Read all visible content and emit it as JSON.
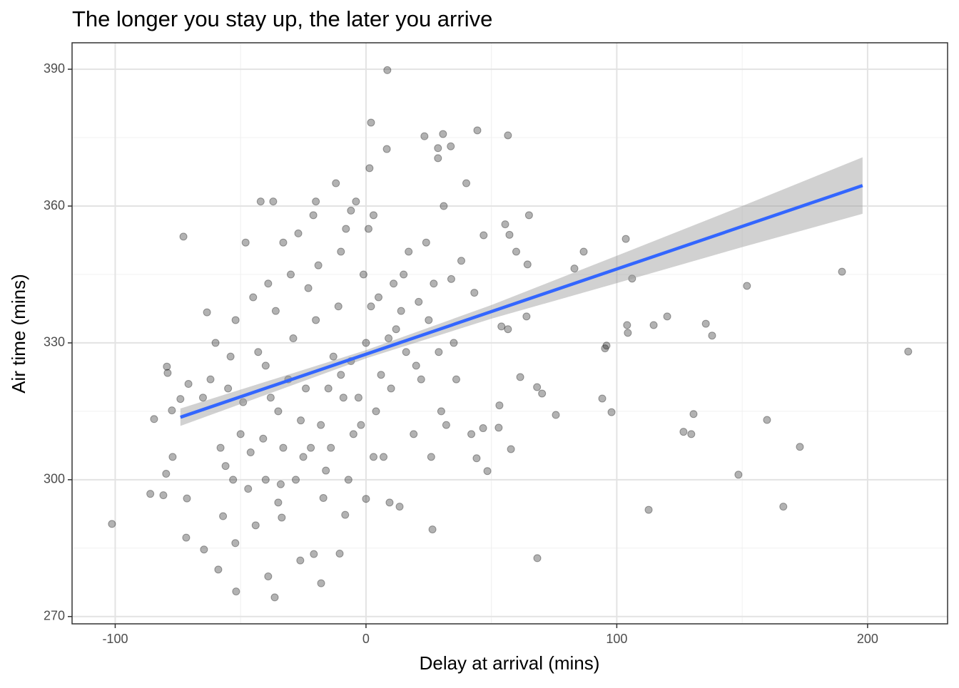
{
  "chart_data": {
    "type": "scatter",
    "title": "The longer you stay up, the later you arrive",
    "x_label": "Delay at arrival (mins)",
    "y_label": "Air time (mins)",
    "xlim": [
      -117.2,
      231.9
    ],
    "ylim": [
      268.4,
      395.8
    ],
    "xticks": [
      -100,
      0,
      100,
      200
    ],
    "yticks": [
      270,
      300,
      330,
      360,
      390
    ],
    "minor_xticks": [
      -50,
      50,
      150
    ],
    "minor_yticks": [
      285,
      315,
      345,
      375
    ],
    "grid": true,
    "color": "#000000",
    "x": [
      -101.3,
      -86,
      -84.5,
      -80.8,
      -79.7,
      -79.4,
      -79.1,
      -77.4,
      -77.1,
      -74,
      -72.8,
      -71.4,
      -71.7,
      -70.8,
      -64.6,
      -63.4,
      -58.9,
      -51.8,
      -36.4,
      -39,
      -17.9,
      8.5,
      2,
      23.3,
      30.7,
      44.4,
      56.6,
      33.8,
      28.7,
      28.7,
      8.3,
      1.4,
      65,
      55.5,
      57.2,
      59.9,
      64.4,
      86.8,
      83.1,
      103.6,
      106.1,
      104.1,
      104.4,
      114.7,
      120.1,
      135.5,
      138,
      151.9,
      189.8,
      216.2,
      95.9,
      95.3,
      94.2,
      97.9,
      126.6,
      129.7,
      130.6,
      159.9,
      173,
      148.5,
      166.4,
      112.7,
      68.3,
      75.7,
      70.2,
      68.2,
      61.5,
      57.8,
      53.2,
      52.9,
      48.4,
      46.7,
      44.1,
      64,
      54,
      56.6,
      43.2,
      46.9,
      26.5,
      13.4,
      9.4,
      -8.3,
      0,
      -33.6,
      -26.2,
      -20.8,
      -10.5,
      -52.1,
      -60,
      -55,
      -50,
      -45,
      -40,
      -35,
      -30,
      -25,
      -20,
      -15,
      -10,
      -5,
      0,
      5,
      10,
      15,
      20,
      25,
      30,
      35,
      -58,
      -52,
      -47,
      -43,
      -38,
      -33,
      -28,
      -23,
      -18,
      -13,
      -8,
      -3,
      2,
      7,
      12,
      17,
      22,
      27,
      32,
      38,
      -62,
      -56,
      -49,
      -41,
      -36,
      -31,
      -26,
      -21,
      -16,
      -11,
      -6,
      -1,
      4,
      9,
      14,
      19,
      24,
      29,
      36,
      40,
      -65,
      -54,
      -46,
      -39,
      -34,
      -29,
      -24,
      -19,
      -14,
      -9,
      -4,
      1,
      6,
      11,
      16,
      21,
      26,
      31,
      34,
      42,
      -42,
      -37,
      -20,
      -12,
      -6,
      3,
      -48,
      -27,
      -44,
      -40,
      -33,
      -22,
      -17,
      -7,
      -2,
      3,
      -53,
      -57,
      -35,
      -10
    ],
    "values": [
      290.3,
      296.9,
      313.3,
      296.6,
      301.3,
      324.8,
      323.4,
      315.2,
      305,
      317.7,
      353.3,
      295.9,
      287.3,
      321,
      284.7,
      336.7,
      280.3,
      275.5,
      274.2,
      278.8,
      277.3,
      389.8,
      378.3,
      375.3,
      375.8,
      376.6,
      375.5,
      373.1,
      372.7,
      370.5,
      372.5,
      368.3,
      358,
      356,
      353.7,
      350,
      347.2,
      350,
      346.3,
      352.8,
      344.1,
      333.9,
      332.2,
      333.9,
      335.8,
      334.2,
      331.6,
      342.5,
      345.6,
      328.1,
      329.4,
      328.8,
      317.8,
      314.8,
      310.5,
      310,
      314.4,
      313.1,
      307.2,
      301.1,
      294.1,
      293.4,
      282.8,
      314.2,
      318.9,
      320.3,
      322.5,
      306.7,
      316.3,
      311.4,
      301.9,
      311.3,
      304.7,
      335.8,
      333.6,
      333,
      341,
      353.6,
      289.1,
      294.1,
      295,
      292.3,
      295.8,
      291.7,
      282.3,
      283.7,
      283.8,
      286.1,
      330,
      320,
      310,
      340,
      325,
      315,
      345,
      305,
      335,
      320,
      350,
      310,
      330,
      340,
      320,
      345,
      325,
      335,
      315,
      330,
      307,
      335,
      298,
      328,
      318,
      352,
      300,
      342,
      312,
      327,
      355,
      318,
      338,
      305,
      333,
      350,
      322,
      343,
      312,
      348,
      322,
      303,
      317,
      309,
      337,
      322,
      313,
      358,
      302,
      338,
      326,
      345,
      315,
      331,
      337,
      310,
      352,
      328,
      322,
      365,
      318,
      327,
      306,
      343,
      299,
      331,
      320,
      347,
      307,
      318,
      361,
      355,
      323,
      343,
      328,
      339,
      305,
      360,
      344,
      310,
      361,
      361,
      361,
      365,
      359,
      358,
      352,
      354,
      290,
      300,
      307,
      307,
      296,
      300,
      312,
      305,
      300,
      292,
      295,
      323
    ],
    "fit": {
      "x": [
        -74,
        198
      ],
      "y": [
        313.7,
        364.5
      ],
      "color": "#3366ff"
    },
    "ribbon": {
      "x": [
        -74,
        0,
        50,
        100,
        150,
        198
      ],
      "lower": [
        311.8,
        326.6,
        335.3,
        343.1,
        351.0,
        358.3
      ],
      "upper": [
        315.6,
        328.4,
        338.3,
        349.1,
        360.0,
        370.7
      ],
      "color": "#999999"
    }
  }
}
